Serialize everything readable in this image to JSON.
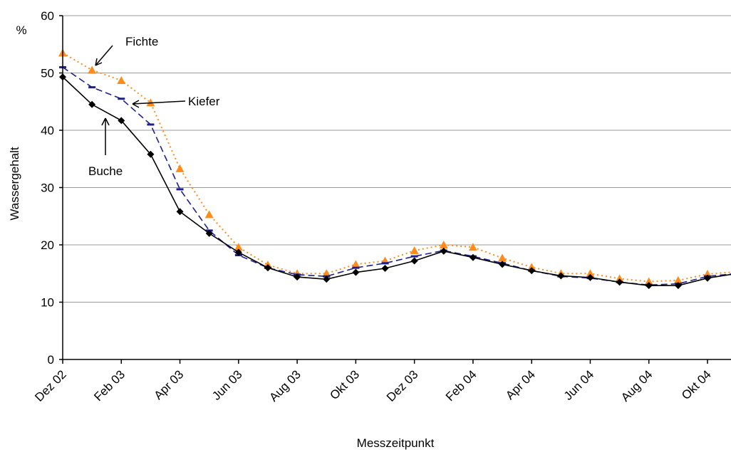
{
  "chart_data": {
    "type": "line",
    "ylabel": "Wassergehalt",
    "y_unit_label": "%",
    "xlabel": "Messzeitpunkt",
    "categories": [
      "Dez 02",
      null,
      "Feb 03",
      null,
      "Apr 03",
      null,
      "Jun 03",
      null,
      "Aug 03",
      null,
      "Okt 03",
      null,
      "Dez 03",
      null,
      "Feb 04",
      null,
      "Apr 04",
      null,
      "Jun 04",
      null,
      "Aug 04",
      null,
      "Okt 04",
      null
    ],
    "ylim": [
      0,
      60
    ],
    "yticks": [
      0,
      10,
      20,
      30,
      40,
      50,
      60
    ],
    "grid": true,
    "annotations": [
      "Fichte",
      "Kiefer",
      "Buche"
    ],
    "series": [
      {
        "name": "Buche",
        "color": "#000000",
        "marker": "diamond",
        "dash": "solid",
        "values": [
          49.3,
          44.5,
          41.7,
          35.8,
          25.8,
          22.0,
          18.7,
          16.0,
          14.4,
          14.0,
          15.2,
          15.9,
          17.2,
          18.9,
          17.8,
          16.6,
          15.5,
          14.6,
          14.3,
          13.5,
          12.9,
          12.9,
          14.2,
          15.0
        ]
      },
      {
        "name": "Kiefer",
        "color": "#1f1f8f",
        "marker": "dash",
        "dash": "dashed",
        "values": [
          51.0,
          47.5,
          45.5,
          41.0,
          29.7,
          22.5,
          18.2,
          16.0,
          14.8,
          14.5,
          16.0,
          16.8,
          18.0,
          19.0,
          18.0,
          16.8,
          15.5,
          14.5,
          14.2,
          13.5,
          13.0,
          13.2,
          14.5,
          15.0
        ]
      },
      {
        "name": "Fichte",
        "color": "#ff8c1a",
        "marker": "triangle",
        "dash": "dotted",
        "values": [
          53.5,
          50.5,
          48.7,
          44.8,
          33.3,
          25.3,
          19.6,
          16.5,
          15.0,
          15.0,
          16.6,
          17.2,
          19.0,
          20.0,
          19.6,
          17.7,
          16.1,
          15.0,
          15.0,
          14.1,
          13.6,
          13.8,
          14.9,
          15.3
        ]
      }
    ]
  }
}
